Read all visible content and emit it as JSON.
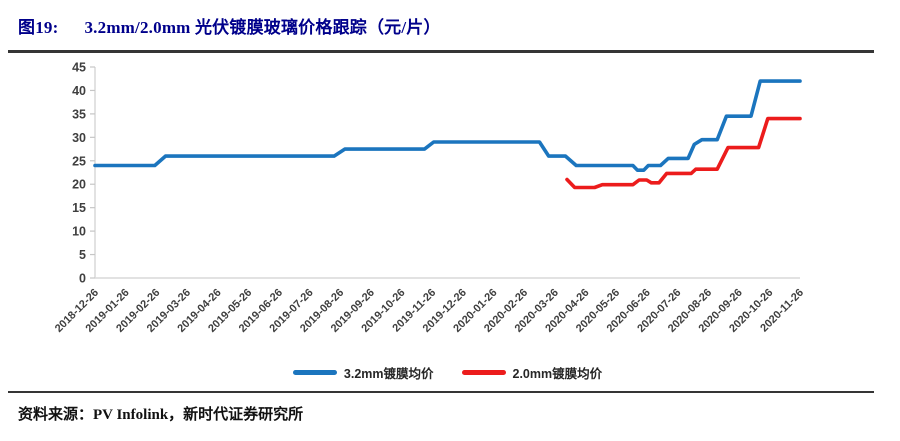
{
  "figure": {
    "number_label": "图19:",
    "title": "3.2mm/2.0mm 光伏镀膜玻璃价格跟踪（元/片）",
    "source": "资料来源：PV Infolink，新时代证券研究所"
  },
  "colors": {
    "title_navy": "#00008B",
    "series_blue": "#1B75BE",
    "series_red": "#EC1C1C",
    "axis_line": "#D9D9D9",
    "tick_mark": "#C6C6C6",
    "tick_label": "#3F3F3F",
    "separator_rule": "#353535"
  },
  "chart_data": {
    "type": "line",
    "title": "3.2mm/2.0mm 光伏镀膜玻璃价格跟踪（元/片）",
    "xlabel": "",
    "ylabel": "",
    "ylim": [
      0,
      45
    ],
    "ytick_step": 5,
    "grid": false,
    "legend_position": "bottom-center",
    "x_labels": [
      "2018-12-26",
      "2019-01-26",
      "2019-02-26",
      "2019-03-26",
      "2019-04-26",
      "2019-05-26",
      "2019-06-26",
      "2019-07-26",
      "2019-08-26",
      "2019-09-26",
      "2019-10-26",
      "2019-11-26",
      "2019-12-26",
      "2020-01-26",
      "2020-02-26",
      "2020-03-26",
      "2020-04-26",
      "2020-05-26",
      "2020-06-26",
      "2020-07-26",
      "2020-08-26",
      "2020-09-26",
      "2020-10-26",
      "2020-11-26"
    ],
    "x_encoding": "points use fractional month-index 0-23 along x_labels (weekly price series)",
    "series": [
      {
        "name": "3.2mm镀膜均价",
        "color": "#1B75BE",
        "points": [
          [
            0,
            24
          ],
          [
            1.95,
            24
          ],
          [
            2.3,
            26
          ],
          [
            7.8,
            26
          ],
          [
            8.15,
            27.5
          ],
          [
            10.75,
            27.5
          ],
          [
            11.05,
            29
          ],
          [
            14.5,
            29
          ],
          [
            14.8,
            26
          ],
          [
            15.35,
            26
          ],
          [
            15.7,
            24
          ],
          [
            17.55,
            24
          ],
          [
            17.7,
            23
          ],
          [
            17.9,
            23
          ],
          [
            18.05,
            24
          ],
          [
            18.45,
            24
          ],
          [
            18.7,
            25.5
          ],
          [
            19.35,
            25.5
          ],
          [
            19.55,
            28.5
          ],
          [
            19.8,
            29.5
          ],
          [
            20.3,
            29.5
          ],
          [
            20.6,
            34.5
          ],
          [
            21.4,
            34.5
          ],
          [
            21.7,
            42
          ],
          [
            23,
            42
          ]
        ]
      },
      {
        "name": "2.0mm镀膜均价",
        "color": "#EC1C1C",
        "points": [
          [
            15.4,
            21
          ],
          [
            15.65,
            19.3
          ],
          [
            16.3,
            19.3
          ],
          [
            16.55,
            19.9
          ],
          [
            17.55,
            19.9
          ],
          [
            17.75,
            20.9
          ],
          [
            18.0,
            20.9
          ],
          [
            18.15,
            20.3
          ],
          [
            18.4,
            20.3
          ],
          [
            18.65,
            22.3
          ],
          [
            19.45,
            22.3
          ],
          [
            19.6,
            23.2
          ],
          [
            20.3,
            23.2
          ],
          [
            20.65,
            27.8
          ],
          [
            21.65,
            27.8
          ],
          [
            21.95,
            34
          ],
          [
            23,
            34
          ]
        ]
      }
    ]
  }
}
